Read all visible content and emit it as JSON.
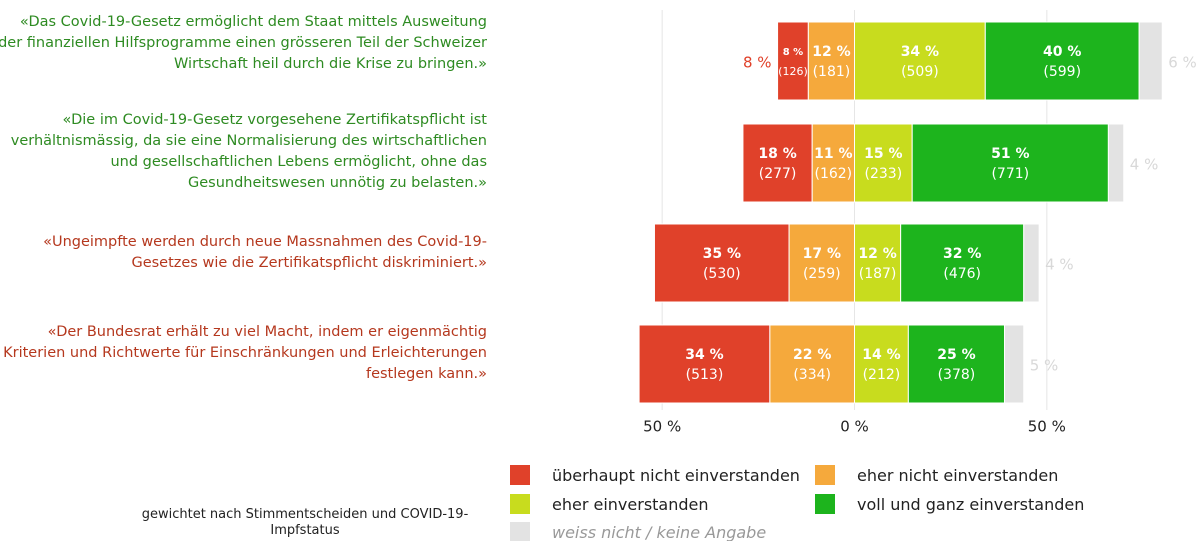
{
  "chart_data": {
    "type": "diverging_bar",
    "categories": [
      "«Das Covid-19-Gesetz ermöglicht dem Staat mittels Ausweitung der finanziellen Hilfsprogramme einen grösseren Teil der Schweizer Wirtschaft heil durch die Krise zu bringen.»",
      "«Die im Covid-19-Gesetz vorgesehene Zertifikatspflicht ist verhältnismässig, da sie eine Normalisierung des wirtschaftlichen und gesellschaftlichen Lebens ermöglicht, ohne das Gesundheitswesen unnötig zu belasten.»",
      "«Ungeimpfte werden durch neue Massnahmen des Covid-19-Gesetzes wie die Zertifikatspflicht diskriminiert.»",
      "«Der Bundesrat erhält zu viel Macht, indem er eigenmächtig Kriterien und Richtwerte für Einschränkungen und Erleichterungen festlegen kann.»"
    ],
    "category_colors": [
      "#2e8b22",
      "#2e8b22",
      "#b5381e",
      "#b5381e"
    ],
    "series": [
      {
        "name": "überhaupt nicht einverstanden",
        "color": "#e0412a",
        "values": [
          8,
          18,
          35,
          34
        ],
        "value_labels": [
          "8 %",
          "18 %",
          "35 %",
          "34 %"
        ],
        "count_labels": [
          "(126)",
          "(277)",
          "(530)",
          "(513)"
        ]
      },
      {
        "name": "eher nicht einverstanden",
        "color": "#f5a93c",
        "values": [
          12,
          11,
          17,
          22
        ],
        "value_labels": [
          "12 %",
          "11 %",
          "17 %",
          "22 %"
        ],
        "count_labels": [
          "(181)",
          "(162)",
          "(259)",
          "(334)"
        ]
      },
      {
        "name": "eher einverstanden",
        "color": "#c8dc1e",
        "values": [
          34,
          15,
          12,
          14
        ],
        "value_labels": [
          "34 %",
          "15 %",
          "12 %",
          "14 %"
        ],
        "count_labels": [
          "(509)",
          "(233)",
          "(187)",
          "(212)"
        ]
      },
      {
        "name": "voll und ganz einverstanden",
        "color": "#1db41d",
        "values": [
          40,
          51,
          32,
          25
        ],
        "value_labels": [
          "40 %",
          "51 %",
          "32 %",
          "25 %"
        ],
        "count_labels": [
          "(599)",
          "(771)",
          "(476)",
          "(378)"
        ]
      },
      {
        "name": "weiss nicht / keine Angabe",
        "color": "#e3e3e3",
        "values": [
          6,
          4,
          4,
          5
        ],
        "value_labels": [
          "6 %",
          "4 %",
          "4 %",
          "5 %"
        ]
      }
    ],
    "annotations": [
      {
        "text": "8 %",
        "color": "#e0412a"
      }
    ],
    "xlim": [
      -75,
      75
    ],
    "xticks": [
      {
        "value": -50,
        "label": "50 %"
      },
      {
        "value": 0,
        "label": "0 %"
      },
      {
        "value": 50,
        "label": "50 %"
      }
    ],
    "grid": true,
    "note": "gewichtet nach Stimmentscheiden und COVID-19-Impfstatus"
  }
}
